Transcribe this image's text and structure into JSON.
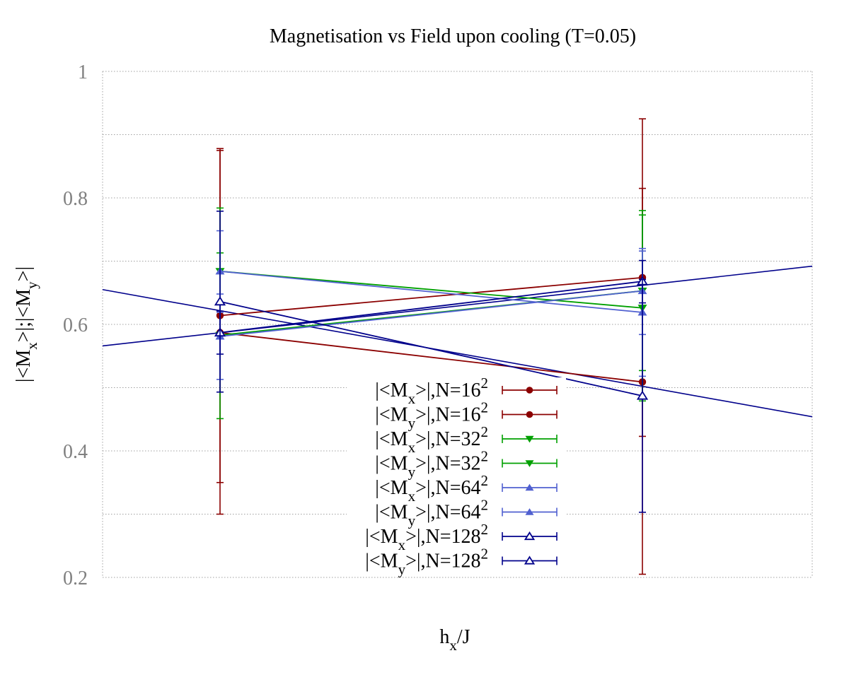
{
  "chart_data": {
    "type": "line",
    "title": "Magnetisation vs Field upon cooling (T=0.05)",
    "xlabel": "h_x/J",
    "ylabel": "|<M_x>|;|<M_y>|",
    "ylim": [
      0.2,
      1.0
    ],
    "yticks": [
      "0.2",
      "0.4",
      "0.6",
      "0.8",
      "1"
    ],
    "grid": true,
    "legend_position": "bottom-center",
    "series": [
      {
        "name": "|<M_x>|,N=16^2",
        "color": "#8b0000",
        "marker": "circle",
        "points": [
          {
            "x": 0,
            "y": 0.614,
            "err": [
              0.35,
              0.875
            ]
          },
          {
            "x": 1,
            "y": 0.674,
            "err": [
              0.423,
              0.925
            ]
          }
        ]
      },
      {
        "name": "|<M_y>|,N=16^2",
        "color": "#8b0000",
        "marker": "circle",
        "points": [
          {
            "x": 0,
            "y": 0.587,
            "err": [
              0.3,
              0.878
            ]
          },
          {
            "x": 1,
            "y": 0.509,
            "err": [
              0.205,
              0.815
            ]
          }
        ]
      },
      {
        "name": "|<M_x>|,N=32^2",
        "color": "#00a000",
        "marker": "triangle-down",
        "points": [
          {
            "x": 0,
            "y": 0.684,
            "err": [
              0.585,
              0.784
            ]
          },
          {
            "x": 1,
            "y": 0.626,
            "err": [
              0.479,
              0.773
            ]
          }
        ]
      },
      {
        "name": "|<M_y>|,N=32^2",
        "color": "#00a000",
        "marker": "triangle-down",
        "points": [
          {
            "x": 0,
            "y": 0.583,
            "err": [
              0.451,
              0.713
            ]
          },
          {
            "x": 1,
            "y": 0.653,
            "err": [
              0.527,
              0.78
            ]
          }
        ]
      },
      {
        "name": "|<M_x>|,N=64^2",
        "color": "#5060d0",
        "marker": "triangle-up",
        "points": [
          {
            "x": 0,
            "y": 0.684,
            "err": [
              0.619,
              0.748
            ]
          },
          {
            "x": 1,
            "y": 0.619,
            "err": [
              0.518,
              0.72
            ]
          }
        ]
      },
      {
        "name": "|<M_y>|,N=64^2",
        "color": "#5060d0",
        "marker": "triangle-up",
        "points": [
          {
            "x": 0,
            "y": 0.581,
            "err": [
              0.513,
              0.648
            ]
          },
          {
            "x": 1,
            "y": 0.653,
            "err": [
              0.584,
              0.716
            ]
          }
        ]
      },
      {
        "name": "|<M_x>|,N=128^2",
        "color": "#00008b",
        "marker": "triangle-up-open",
        "points": [
          {
            "x": 0,
            "y": 0.587,
            "err": [
              0.553,
              0.621
            ]
          },
          {
            "x": 1,
            "y": 0.668,
            "err": [
              0.634,
              0.701
            ]
          }
        ]
      },
      {
        "name": "|<M_y>|,N=128^2",
        "color": "#00008b",
        "marker": "triangle-up-open",
        "points": [
          {
            "x": 0,
            "y": 0.636,
            "err": [
              0.493,
              0.779
            ]
          },
          {
            "x": 1,
            "y": 0.487,
            "err": [
              0.303,
              0.671
            ]
          }
        ]
      }
    ],
    "extended_fit_lines": [
      {
        "color": "#00008b",
        "from_series": "|<M_x>|,N=128^2",
        "endpoints_y": [
          0.566,
          0.692
        ]
      },
      {
        "color": "#00008b",
        "from_series": "|<M_y>|,N=128^2",
        "endpoints_y": [
          0.655,
          0.454
        ]
      }
    ]
  }
}
